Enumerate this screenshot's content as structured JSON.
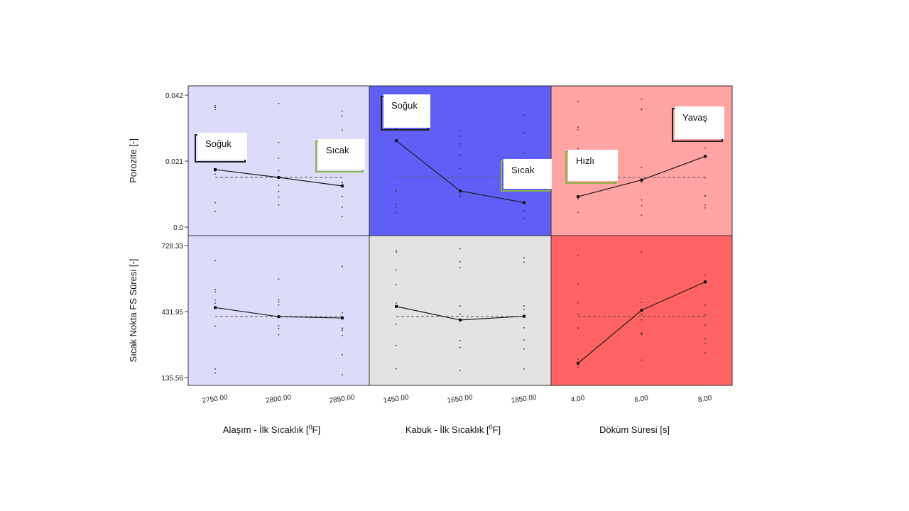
{
  "chart_data": {
    "type": "line",
    "title": "",
    "colors": {
      "alloy": "#dcdcfa",
      "shell_porosity": "#5f5ff8",
      "shell_hotspot": "#e3e3e3",
      "time_porosity": "#ffa3a3",
      "time_hotspot": "#ff6262",
      "annotation_green": "#8ab447",
      "line": "#1a1a1a"
    },
    "rows": [
      {
        "ylabel": "Porozite  [-]",
        "ylim": [
          0.0,
          0.045
        ],
        "yticks": [
          0.0,
          0.021,
          0.042
        ],
        "yticklabels": [
          "0.0",
          "0.021",
          "0.042"
        ],
        "mean": 0.0158
      },
      {
        "ylabel": "Sıcak Nokta FS Süresi [-]",
        "ylim": [
          110,
          760
        ],
        "yticks": [
          135.56,
          431.95,
          728.33
        ],
        "yticklabels": [
          "135.56",
          "431.95",
          "728.33"
        ],
        "mean": 410
      }
    ],
    "columns": [
      {
        "xlabel": "Alaşım - İlk Sıcaklık [",
        "xlabel_sup": "0",
        "xlabel_end": "F]",
        "x": [
          "2750.00",
          "2800.00",
          "2850.00"
        ]
      },
      {
        "xlabel": "Kabuk - İlk Sıcaklık [",
        "xlabel_sup": "0",
        "xlabel_end": "F]",
        "x": [
          "1450.00",
          "1650.00",
          "1850.00"
        ]
      },
      {
        "xlabel": "Döküm Süresi [s]",
        "xlabel_sup": "",
        "xlabel_end": "",
        "x": [
          "4.00",
          "6.00",
          "8.00"
        ]
      }
    ],
    "panels": [
      {
        "row": 0,
        "col": 0,
        "bg": "alloy",
        "values": [
          0.0183,
          0.0158,
          0.0131
        ]
      },
      {
        "row": 0,
        "col": 1,
        "bg": "shell_porosity",
        "values": [
          0.0275,
          0.0115,
          0.0078
        ]
      },
      {
        "row": 0,
        "col": 2,
        "bg": "time_porosity",
        "values": [
          0.0097,
          0.015,
          0.0225
        ]
      },
      {
        "row": 1,
        "col": 0,
        "bg": "alloy",
        "values": [
          450,
          409,
          403
        ]
      },
      {
        "row": 1,
        "col": 1,
        "bg": "shell_hotspot",
        "values": [
          455,
          394,
          411
        ]
      },
      {
        "row": 1,
        "col": 2,
        "bg": "time_hotspot",
        "values": [
          200,
          438,
          565
        ]
      }
    ],
    "annotations": [
      {
        "text": "Soğuk",
        "panel_col": 0,
        "shadow": "dark"
      },
      {
        "text": "Sıcak",
        "panel_col": 0,
        "shadow": "green"
      },
      {
        "text": "Soğuk",
        "panel_col": 1,
        "shadow": "dark"
      },
      {
        "text": "Sıcak",
        "panel_col": 1,
        "shadow": "green"
      },
      {
        "text": "Hızlı",
        "panel_col": 2,
        "shadow": "green"
      },
      {
        "text": "Yavaş",
        "panel_col": 2,
        "shadow": "dark"
      }
    ]
  }
}
